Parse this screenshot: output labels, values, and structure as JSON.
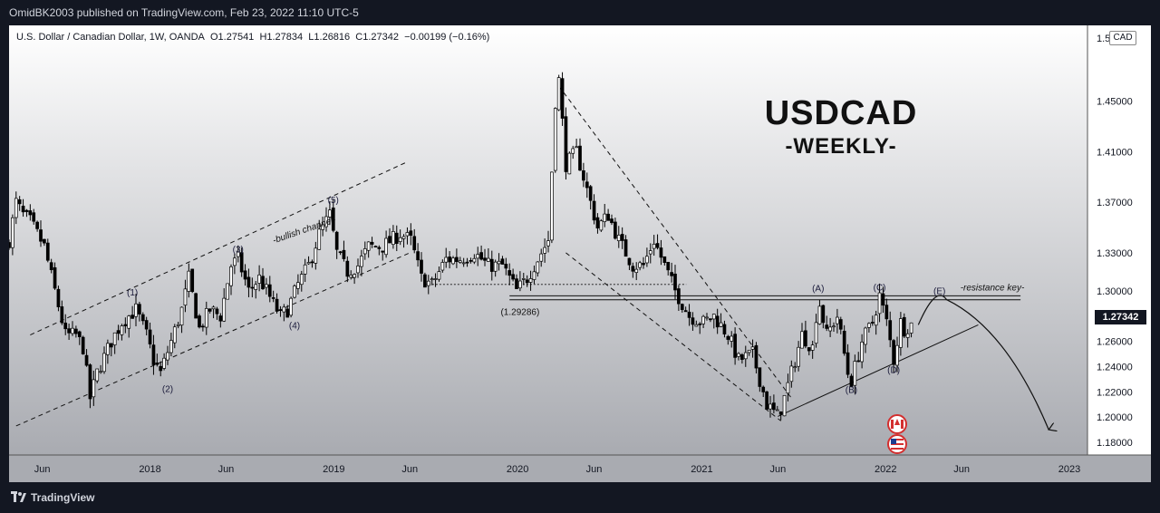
{
  "header": {
    "published_line": "OmidBK2003 published on TradingView.com, Feb 23, 2022 11:10 UTC-5"
  },
  "legend": {
    "symbol": "U.S. Dollar / Canadian Dollar, 1W, OANDA",
    "open": "O1.27541",
    "high": "H1.27834",
    "low": "L1.26816",
    "close": "C1.27342",
    "change": "−0.00199 (−0.16%)"
  },
  "price_axis": {
    "currency": "CAD",
    "current_price": "1.27342"
  },
  "footer": {
    "brand": "TradingView"
  },
  "colors": {
    "background_top": "#ffffff",
    "background_bottom": "#a9abb1",
    "candles": "#000000",
    "price_tag": "#131722"
  },
  "chart_data": {
    "type": "candlestick",
    "title": "USDCAD",
    "subtitle": "-WEEKLY-",
    "timeframe": "1W",
    "x_range": [
      "2017-03-27",
      "2023-02-06"
    ],
    "ylim": [
      1.17,
      1.51
    ],
    "y_ticks": [
      1.18,
      1.2,
      1.22,
      1.24,
      1.26,
      1.28,
      1.3,
      1.33,
      1.37,
      1.41,
      1.45,
      1.5
    ],
    "y_tick_labels": [
      "1.18000",
      "1.20000",
      "1.22000",
      "1.24000",
      "1.26000",
      "1.28000",
      "1.30000",
      "1.33000",
      "1.37000",
      "1.41000",
      "1.45000",
      "1.50000"
    ],
    "x_ticks": [
      {
        "date": "2017-06-01",
        "label": "Jun"
      },
      {
        "date": "2018-01-01",
        "label": "2018"
      },
      {
        "date": "2018-06-01",
        "label": "Jun"
      },
      {
        "date": "2019-01-01",
        "label": "2019"
      },
      {
        "date": "2019-06-01",
        "label": "Jun"
      },
      {
        "date": "2020-01-01",
        "label": "2020"
      },
      {
        "date": "2020-06-01",
        "label": "Jun"
      },
      {
        "date": "2021-01-01",
        "label": "2021"
      },
      {
        "date": "2021-06-01",
        "label": "Jun"
      },
      {
        "date": "2022-01-01",
        "label": "2022"
      },
      {
        "date": "2022-06-01",
        "label": "Jun"
      },
      {
        "date": "2023-01-01",
        "label": "2023"
      }
    ],
    "price_path": [
      [
        "2017-03-27",
        1.34
      ],
      [
        "2017-04-10",
        1.37
      ],
      [
        "2017-04-24",
        1.36
      ],
      [
        "2017-05-08",
        1.355
      ],
      [
        "2017-06-05",
        1.335
      ],
      [
        "2017-06-26",
        1.3
      ],
      [
        "2017-07-17",
        1.265
      ],
      [
        "2017-08-07",
        1.265
      ],
      [
        "2017-08-21",
        1.255
      ],
      [
        "2017-09-04",
        1.215
      ],
      [
        "2017-09-18",
        1.235
      ],
      [
        "2017-10-16",
        1.26
      ],
      [
        "2017-11-06",
        1.275
      ],
      [
        "2017-11-20",
        1.28
      ],
      [
        "2017-12-04",
        1.285
      ],
      [
        "2017-12-25",
        1.265
      ],
      [
        "2018-01-08",
        1.245
      ],
      [
        "2018-01-22",
        1.235
      ],
      [
        "2018-02-12",
        1.26
      ],
      [
        "2018-03-05",
        1.285
      ],
      [
        "2018-03-19",
        1.31
      ],
      [
        "2018-04-09",
        1.27
      ],
      [
        "2018-04-30",
        1.285
      ],
      [
        "2018-05-21",
        1.28
      ],
      [
        "2018-06-11",
        1.32
      ],
      [
        "2018-06-25",
        1.325
      ],
      [
        "2018-07-16",
        1.3
      ],
      [
        "2018-08-06",
        1.31
      ],
      [
        "2018-08-27",
        1.295
      ],
      [
        "2018-09-17",
        1.28
      ],
      [
        "2018-10-01",
        1.285
      ],
      [
        "2018-10-22",
        1.305
      ],
      [
        "2018-11-12",
        1.32
      ],
      [
        "2018-12-03",
        1.345
      ],
      [
        "2018-12-24",
        1.36
      ],
      [
        "2019-01-07",
        1.33
      ],
      [
        "2019-01-28",
        1.315
      ],
      [
        "2019-02-18",
        1.32
      ],
      [
        "2019-03-11",
        1.335
      ],
      [
        "2019-04-08",
        1.335
      ],
      [
        "2019-05-13",
        1.345
      ],
      [
        "2019-06-03",
        1.34
      ],
      [
        "2019-06-24",
        1.31
      ],
      [
        "2019-07-15",
        1.305
      ],
      [
        "2019-08-12",
        1.325
      ],
      [
        "2019-09-09",
        1.325
      ],
      [
        "2019-10-07",
        1.33
      ],
      [
        "2019-11-04",
        1.32
      ],
      [
        "2019-12-02",
        1.32
      ],
      [
        "2019-12-30",
        1.3
      ],
      [
        "2020-01-20",
        1.31
      ],
      [
        "2020-02-17",
        1.33
      ],
      [
        "2020-03-02",
        1.34
      ],
      [
        "2020-03-16",
        1.45
      ],
      [
        "2020-03-23",
        1.4667
      ],
      [
        "2020-04-06",
        1.4
      ],
      [
        "2020-04-27",
        1.41
      ],
      [
        "2020-05-18",
        1.38
      ],
      [
        "2020-06-08",
        1.35
      ],
      [
        "2020-06-29",
        1.36
      ],
      [
        "2020-07-20",
        1.34
      ],
      [
        "2020-08-17",
        1.32
      ],
      [
        "2020-09-07",
        1.32
      ],
      [
        "2020-09-28",
        1.34
      ],
      [
        "2020-10-19",
        1.32
      ],
      [
        "2020-11-09",
        1.3
      ],
      [
        "2020-12-07",
        1.28
      ],
      [
        "2021-01-04",
        1.275
      ],
      [
        "2021-01-25",
        1.28
      ],
      [
        "2021-02-22",
        1.265
      ],
      [
        "2021-03-15",
        1.245
      ],
      [
        "2021-04-12",
        1.25
      ],
      [
        "2021-05-10",
        1.21
      ],
      [
        "2021-06-01",
        1.2005
      ],
      [
        "2021-06-14",
        1.215
      ],
      [
        "2021-06-28",
        1.235
      ],
      [
        "2021-07-19",
        1.265
      ],
      [
        "2021-08-09",
        1.255
      ],
      [
        "2021-08-20",
        1.2949
      ],
      [
        "2021-09-06",
        1.265
      ],
      [
        "2021-09-27",
        1.28
      ],
      [
        "2021-10-18",
        1.235
      ],
      [
        "2021-10-25",
        1.2288
      ],
      [
        "2021-11-15",
        1.26
      ],
      [
        "2021-12-06",
        1.275
      ],
      [
        "2021-12-20",
        1.2964
      ],
      [
        "2022-01-03",
        1.275
      ],
      [
        "2022-01-17",
        1.2451
      ],
      [
        "2022-01-31",
        1.275
      ],
      [
        "2022-02-07",
        1.27
      ],
      [
        "2022-02-21",
        1.2734
      ]
    ],
    "annotations": {
      "wave_labels": [
        {
          "label": "(1)",
          "date": "2017-11-27",
          "price": 1.292
        },
        {
          "label": "(2)",
          "date": "2018-02-05",
          "price": 1.23
        },
        {
          "label": "(3)",
          "date": "2018-06-25",
          "price": 1.326
        },
        {
          "label": "(4)",
          "date": "2018-10-15",
          "price": 1.28
        },
        {
          "label": "(5)",
          "date": "2018-12-31",
          "price": 1.365
        },
        {
          "label": "(A)",
          "date": "2021-08-20",
          "price": 1.295
        },
        {
          "label": "(B)",
          "date": "2021-10-25",
          "price": 1.229
        },
        {
          "label": "(C)",
          "date": "2021-12-20",
          "price": 1.296
        },
        {
          "label": "(D)",
          "date": "2022-01-17",
          "price": 1.245
        },
        {
          "label": "(E)",
          "date": "2022-04-18",
          "price": 1.293
        }
      ],
      "texts": [
        {
          "text": "-bullish channel-"
        },
        {
          "text": "-resistance key-"
        },
        {
          "text": "(1.29286)"
        }
      ],
      "support_level": 1.29286
    }
  }
}
